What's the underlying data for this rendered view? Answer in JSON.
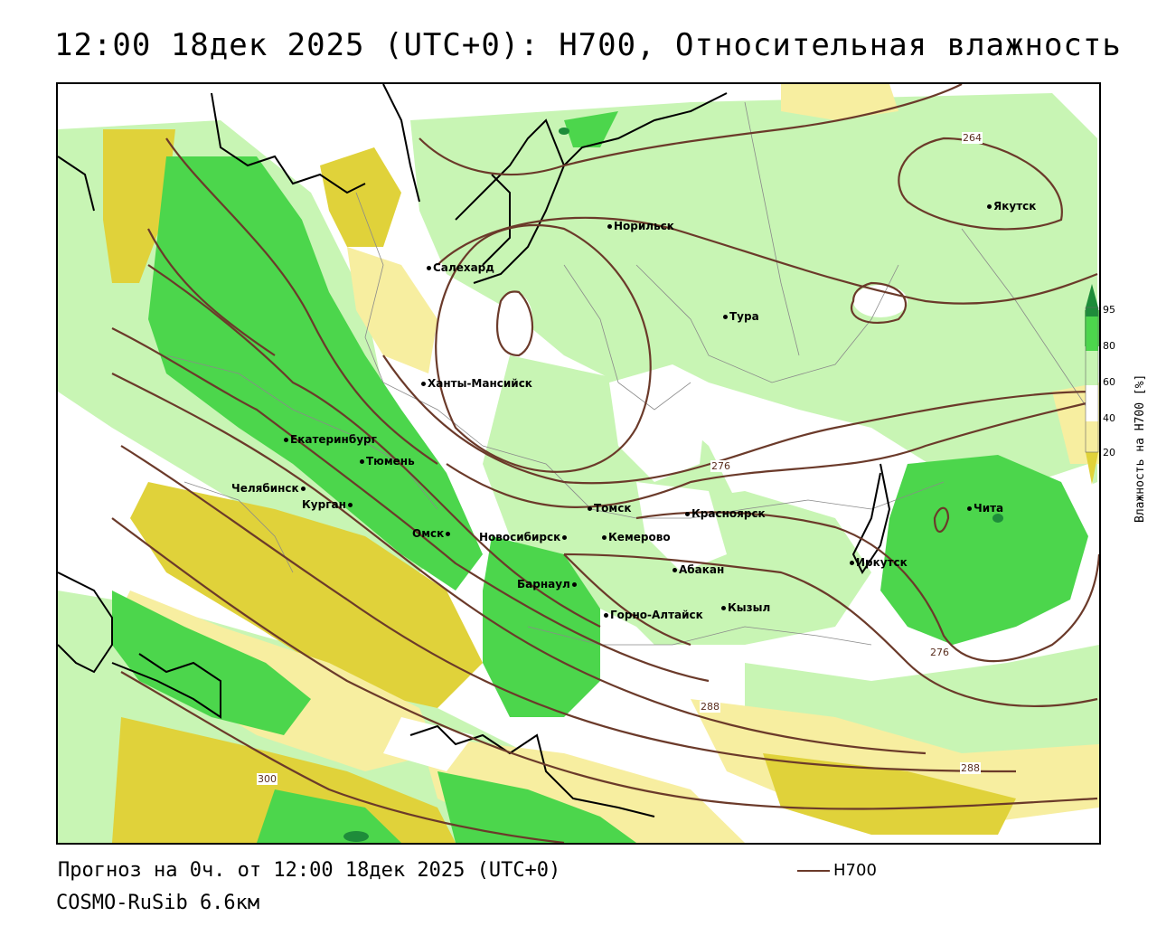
{
  "header": {
    "title": "12:00 18дек 2025 (UTC+0): H700, Относительная влажность"
  },
  "map": {
    "cities": [
      {
        "id": "yakutsk",
        "name": "Якутск"
      },
      {
        "id": "norilsk",
        "name": "Норильск"
      },
      {
        "id": "salekhard",
        "name": "Салехард"
      },
      {
        "id": "tura",
        "name": "Тура"
      },
      {
        "id": "khanty",
        "name": "Ханты-Мансийск"
      },
      {
        "id": "ekb",
        "name": "Екатеринбург"
      },
      {
        "id": "tyumen",
        "name": "Тюмень"
      },
      {
        "id": "chelyabinsk",
        "name": "Челябинск"
      },
      {
        "id": "kurgan",
        "name": "Курган"
      },
      {
        "id": "omsk",
        "name": "Омск"
      },
      {
        "id": "novosibirsk",
        "name": "Новосибирск"
      },
      {
        "id": "tomsk",
        "name": "Томск"
      },
      {
        "id": "kemerovo",
        "name": "Кемерово"
      },
      {
        "id": "krasnoyarsk",
        "name": "Красноярск"
      },
      {
        "id": "barnaul",
        "name": "Барнаул"
      },
      {
        "id": "abakan",
        "name": "Абакан"
      },
      {
        "id": "gorno",
        "name": "Горно-Алтайск"
      },
      {
        "id": "kyzyl",
        "name": "Кызыл"
      },
      {
        "id": "irkutsk",
        "name": "Иркутск"
      },
      {
        "id": "chita",
        "name": "Чита"
      }
    ],
    "contour_labels": [
      {
        "id": "c264",
        "text": "264"
      },
      {
        "id": "c276a",
        "text": "276"
      },
      {
        "id": "c276b",
        "text": "276"
      },
      {
        "id": "c288a",
        "text": "288"
      },
      {
        "id": "c288b",
        "text": "288"
      },
      {
        "id": "c300",
        "text": "300"
      }
    ],
    "colors": {
      "h700_contour": "#6b3a2a",
      "rh_95_plus": "#1e8c3a",
      "rh_80_95": "#4cd64c",
      "rh_60_80": "#c8f5b4",
      "rh_40_60": "#ffffff",
      "rh_20_40": "#f7eea0",
      "rh_below_20": "#e0d23a"
    }
  },
  "legend": {
    "title": "Влажность на H700 [%]",
    "ticks": [
      "95",
      "80",
      "60",
      "40",
      "20"
    ]
  },
  "footer": {
    "forecast_line": "Прогноз на 0ч. от 12:00 18дек 2025 (UTC+0)",
    "model_line": "COSMO-RuSib 6.6км",
    "h700_key_label": "H700"
  }
}
